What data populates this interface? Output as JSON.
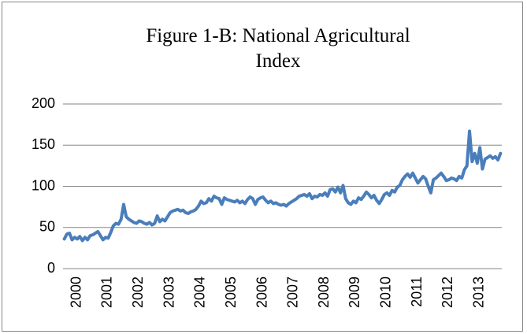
{
  "chart_data": {
    "type": "line",
    "title": "Figure 1-B: National Agricultural Index",
    "categories": [
      "2000",
      null,
      null,
      null,
      null,
      null,
      null,
      null,
      null,
      null,
      null,
      null,
      "2001",
      null,
      null,
      null,
      null,
      null,
      null,
      null,
      null,
      null,
      null,
      null,
      "2002",
      null,
      null,
      null,
      null,
      null,
      null,
      null,
      null,
      null,
      null,
      null,
      "2003",
      null,
      null,
      null,
      null,
      null,
      null,
      null,
      null,
      null,
      null,
      null,
      "2004",
      null,
      null,
      null,
      null,
      null,
      null,
      null,
      null,
      null,
      null,
      null,
      "2005",
      null,
      null,
      null,
      null,
      null,
      null,
      null,
      null,
      null,
      null,
      null,
      "2006",
      null,
      null,
      null,
      null,
      null,
      null,
      null,
      null,
      null,
      null,
      null,
      "2007",
      null,
      null,
      null,
      null,
      null,
      null,
      null,
      null,
      null,
      null,
      null,
      "2008",
      null,
      null,
      null,
      null,
      null,
      null,
      null,
      null,
      null,
      null,
      null,
      "2009",
      null,
      null,
      null,
      null,
      null,
      null,
      null,
      null,
      null,
      null,
      null,
      "2010",
      null,
      null,
      null,
      null,
      null,
      null,
      null,
      null,
      null,
      null,
      null,
      "2011",
      null,
      null,
      null,
      null,
      null,
      null,
      null,
      null,
      null,
      null,
      null,
      "2012",
      null,
      null,
      null,
      null,
      null,
      null,
      null,
      null,
      null,
      null,
      null,
      "2013",
      null,
      null,
      null,
      null,
      null,
      null,
      null,
      null,
      null,
      null,
      null,
      null,
      null
    ],
    "values": [
      36,
      42,
      43,
      35,
      38,
      36,
      39,
      34,
      38,
      35,
      40,
      41,
      43,
      45,
      40,
      35,
      38,
      37,
      44,
      52,
      55,
      54,
      60,
      78,
      63,
      60,
      58,
      56,
      55,
      58,
      57,
      55,
      54,
      56,
      53,
      55,
      64,
      57,
      60,
      58,
      63,
      68,
      70,
      71,
      72,
      70,
      71,
      68,
      67,
      69,
      70,
      72,
      76,
      82,
      79,
      80,
      85,
      82,
      88,
      86,
      85,
      78,
      86,
      84,
      83,
      82,
      81,
      83,
      80,
      82,
      79,
      84,
      87,
      85,
      78,
      84,
      86,
      87,
      83,
      80,
      82,
      79,
      80,
      78,
      77,
      78,
      76,
      79,
      81,
      83,
      85,
      88,
      89,
      90,
      88,
      91,
      85,
      88,
      87,
      90,
      89,
      92,
      88,
      96,
      97,
      93,
      99,
      92,
      101,
      85,
      80,
      78,
      82,
      80,
      86,
      84,
      88,
      93,
      90,
      86,
      89,
      83,
      79,
      84,
      90,
      92,
      89,
      95,
      93,
      99,
      101,
      108,
      112,
      115,
      111,
      116,
      110,
      104,
      108,
      112,
      109,
      100,
      92,
      108,
      110,
      113,
      116,
      112,
      107,
      108,
      110,
      109,
      107,
      112,
      110,
      120,
      125,
      167,
      130,
      140,
      128,
      147,
      121,
      133,
      135,
      137,
      134,
      136,
      132,
      140
    ],
    "color": "#4a7ebb",
    "ylim": [
      0,
      200
    ],
    "yticks": [
      0,
      50,
      100,
      150,
      200
    ],
    "grid": true
  }
}
